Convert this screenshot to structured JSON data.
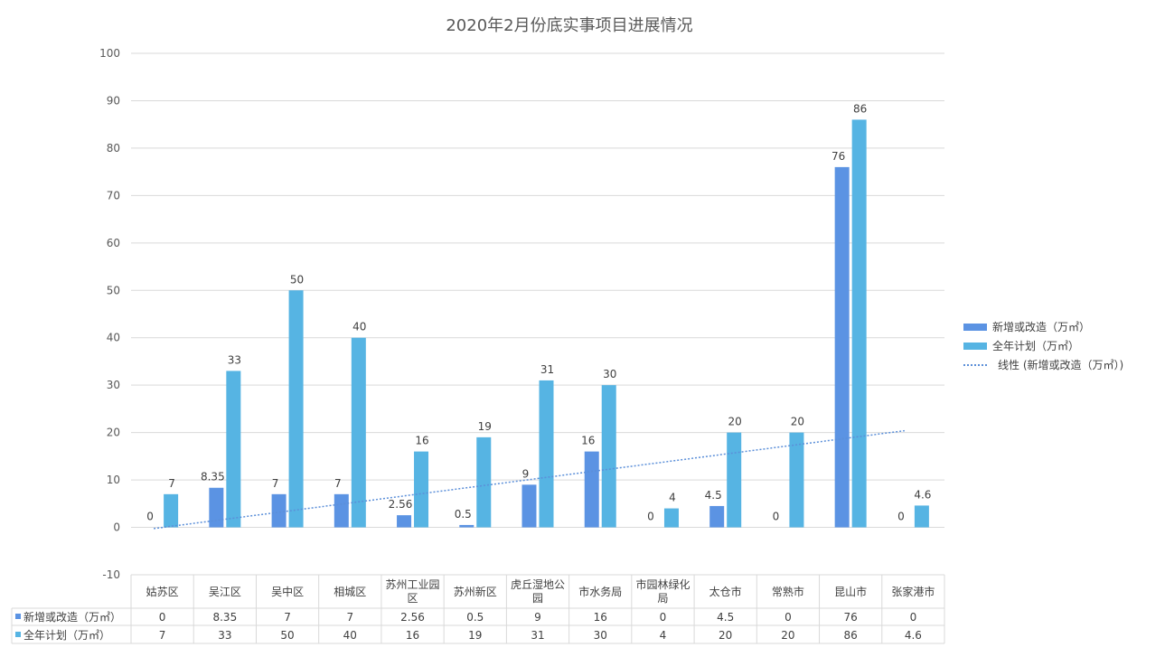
{
  "chart_data": {
    "type": "bar",
    "title": "2020年2月份底实事项目进展情况",
    "categories": [
      "姑苏区",
      "吴江区",
      "吴中区",
      "相城区",
      "苏州工业园区",
      "苏州新区",
      "虎丘湿地公园",
      "市水务局",
      "市园林绿化局",
      "太仓市",
      "常熟市",
      "昆山市",
      "张家港市"
    ],
    "category_lines": [
      [
        "姑苏区"
      ],
      [
        "吴江区"
      ],
      [
        "吴中区"
      ],
      [
        "相城区"
      ],
      [
        "苏州工业园",
        "区"
      ],
      [
        "苏州新区"
      ],
      [
        "虎丘湿地公",
        "园"
      ],
      [
        "市水务局"
      ],
      [
        "市园林绿化",
        "局"
      ],
      [
        "太仓市"
      ],
      [
        "常熟市"
      ],
      [
        "昆山市"
      ],
      [
        "张家港市"
      ]
    ],
    "series": [
      {
        "name": "新增或改造（万㎡）",
        "color": "#5B93E3",
        "values": [
          0,
          8.35,
          7,
          7,
          2.56,
          0.5,
          9,
          16,
          0,
          4.5,
          0,
          76,
          0
        ],
        "labels": [
          "0",
          "8.35",
          "7",
          "7",
          "2.56",
          "0.5",
          "9",
          "16",
          "0",
          "4.5",
          "0",
          "76",
          "0"
        ]
      },
      {
        "name": "全年计划（万㎡）",
        "color": "#56B4E3",
        "values": [
          7,
          33,
          50,
          40,
          16,
          19,
          31,
          30,
          4,
          20,
          20,
          86,
          4.6
        ],
        "labels": [
          "7",
          "33",
          "50",
          "40",
          "16",
          "19",
          "31",
          "30",
          "4",
          "20",
          "20",
          "86",
          "4.6"
        ]
      }
    ],
    "trendline": {
      "name": "线性 (新增或改造（万㎡）)",
      "of_series": 0,
      "type": "linear",
      "style": "dotted",
      "color": "#5B8FD9"
    },
    "ylim": [
      -10,
      100
    ],
    "yticks": [
      "-10",
      "0",
      "10",
      "20",
      "30",
      "40",
      "50",
      "60",
      "70",
      "80",
      "90",
      "100"
    ],
    "grid": true,
    "legend_position": "right",
    "data_table": true,
    "xlabel": "",
    "ylabel": ""
  }
}
